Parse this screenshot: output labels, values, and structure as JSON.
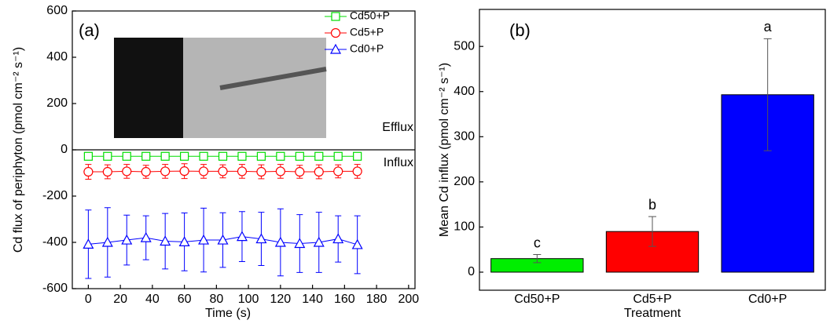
{
  "chart_data": [
    {
      "type": "line",
      "panel": "(a)",
      "ylabel": "Cd flux of periphyton (pmol cm⁻² s⁻¹)",
      "xlabel": "Time (s)",
      "annotations": [
        "Efflux",
        "Influx"
      ],
      "x": [
        0,
        12,
        24,
        36,
        48,
        60,
        72,
        84,
        96,
        108,
        120,
        132,
        144,
        156,
        168
      ],
      "xlim": [
        -10,
        204
      ],
      "xticks": [
        0,
        20,
        40,
        60,
        80,
        100,
        120,
        140,
        160,
        180,
        200
      ],
      "ylim": [
        -600,
        600
      ],
      "yticks": [
        -600,
        -400,
        -200,
        0,
        200,
        400,
        600
      ],
      "series": [
        {
          "name": "Cd50+P",
          "color": "#00dd00",
          "marker": "square",
          "values": [
            -28,
            -28,
            -28,
            -28,
            -28,
            -28,
            -28,
            -28,
            -28,
            -28,
            -28,
            -28,
            -28,
            -28,
            -28
          ],
          "errors": [
            6,
            6,
            6,
            6,
            6,
            6,
            6,
            6,
            6,
            6,
            6,
            6,
            6,
            6,
            6
          ]
        },
        {
          "name": "Cd5+P",
          "color": "#ff0000",
          "marker": "circle",
          "values": [
            -95,
            -95,
            -93,
            -95,
            -93,
            -92,
            -93,
            -93,
            -93,
            -95,
            -93,
            -95,
            -95,
            -93,
            -93
          ],
          "errors": [
            32,
            30,
            30,
            28,
            30,
            32,
            30,
            28,
            30,
            30,
            30,
            28,
            30,
            28,
            30
          ]
        },
        {
          "name": "Cd0+P",
          "color": "#0000ff",
          "marker": "triangle",
          "values": [
            -408,
            -400,
            -390,
            -380,
            -395,
            -398,
            -390,
            -390,
            -375,
            -385,
            -400,
            -405,
            -400,
            -385,
            -410
          ],
          "errors": [
            148,
            150,
            108,
            95,
            120,
            125,
            138,
            118,
            108,
            115,
            145,
            125,
            130,
            100,
            125
          ]
        }
      ]
    },
    {
      "type": "bar",
      "panel": "(b)",
      "ylabel": "Mean Cd influx (pmol cm⁻² s⁻¹)",
      "xlabel": "Treatment",
      "categories": [
        "Cd50+P",
        "Cd5+P",
        "Cd0+P"
      ],
      "values": [
        30,
        90,
        393
      ],
      "errors": [
        9,
        33,
        124
      ],
      "letters": [
        "c",
        "b",
        "a"
      ],
      "colors": [
        "#00ee00",
        "#ff0000",
        "#0000ff"
      ],
      "ylim": [
        -40,
        582
      ],
      "yticks": [
        0,
        100,
        200,
        300,
        400,
        500
      ]
    }
  ]
}
